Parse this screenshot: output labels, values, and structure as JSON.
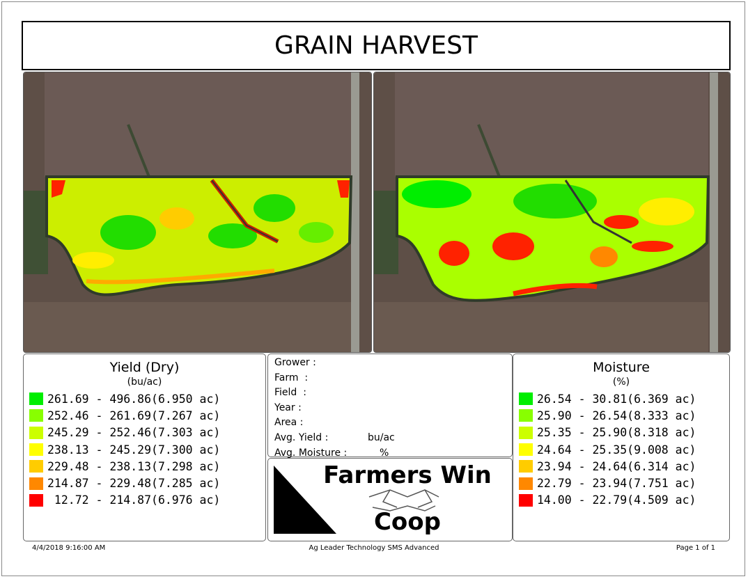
{
  "header": {
    "title": "GRAIN HARVEST"
  },
  "yield_legend": {
    "title": "Yield (Dry)",
    "unit": "(bu/ac)",
    "entries": [
      {
        "text": "261.69 - 496.86(6.950 ac)",
        "color": "#00ee00"
      },
      {
        "text": "252.46 - 261.69(7.267 ac)",
        "color": "#88ff00"
      },
      {
        "text": "245.29 - 252.46(7.303 ac)",
        "color": "#ccff00"
      },
      {
        "text": "238.13 - 245.29(7.300 ac)",
        "color": "#ffff00"
      },
      {
        "text": "229.48 - 238.13(7.298 ac)",
        "color": "#ffcc00"
      },
      {
        "text": "214.87 - 229.48(7.285 ac)",
        "color": "#ff8800"
      },
      {
        "text": " 12.72 - 214.87(6.976 ac)",
        "color": "#ff0000"
      }
    ]
  },
  "moisture_legend": {
    "title": "Moisture",
    "unit": "(%)",
    "entries": [
      {
        "text": "26.54 - 30.81(6.369 ac)",
        "color": "#00ee00"
      },
      {
        "text": "25.90 - 26.54(8.333 ac)",
        "color": "#88ff00"
      },
      {
        "text": "25.35 - 25.90(8.318 ac)",
        "color": "#ccff00"
      },
      {
        "text": "24.64 - 25.35(9.008 ac)",
        "color": "#ffff00"
      },
      {
        "text": "23.94 - 24.64(6.314 ac)",
        "color": "#ffcc00"
      },
      {
        "text": "22.79 - 23.94(7.751 ac)",
        "color": "#ff8800"
      },
      {
        "text": "14.00 - 22.79(4.509 ac)",
        "color": "#ff0000"
      }
    ]
  },
  "info": {
    "fields": [
      {
        "label": "Grower :"
      },
      {
        "label": "Farm  :"
      },
      {
        "label": "Field  :"
      },
      {
        "label": "Year :"
      },
      {
        "label": "Area :"
      },
      {
        "label": "Avg. Yield :",
        "unit": "bu/ac"
      },
      {
        "label": "Avg. Moisture :",
        "unit": "%"
      }
    ]
  },
  "logo": {
    "line1": "Farmers Win",
    "line2": "Coop"
  },
  "footer": {
    "date": "4/4/2018 9:16:00 AM",
    "software": "Ag Leader Technology SMS Advanced",
    "page": "Page 1 of 1"
  }
}
